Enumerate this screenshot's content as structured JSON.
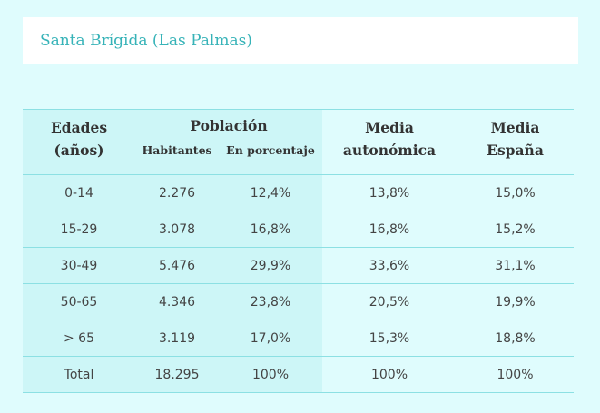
{
  "title": "Santa Brígida (Las Palmas)",
  "headers": {
    "edades_line1": "Edades",
    "edades_line2": "(años)",
    "poblacion": "Población",
    "habitantes": "Habitantes",
    "porcentaje": "En porcentaje",
    "media_auto_line1": "Media",
    "media_auto_line2": "autonómica",
    "media_esp_line1": "Media",
    "media_esp_line2": "España"
  },
  "rows": [
    {
      "edad": "0-14",
      "habitantes": "2.276",
      "porcentaje": "12,4%",
      "media_autonomica": "13,8%",
      "media_espana": "15,0%"
    },
    {
      "edad": "15-29",
      "habitantes": "3.078",
      "porcentaje": "16,8%",
      "media_autonomica": "16,8%",
      "media_espana": "15,2%"
    },
    {
      "edad": "30-49",
      "habitantes": "5.476",
      "porcentaje": "29,9%",
      "media_autonomica": "33,6%",
      "media_espana": "31,1%"
    },
    {
      "edad": "50-65",
      "habitantes": "4.346",
      "porcentaje": "23,8%",
      "media_autonomica": "20,5%",
      "media_espana": "19,9%"
    },
    {
      "edad": "> 65",
      "habitantes": "3.119",
      "porcentaje": "17,0%",
      "media_autonomica": "15,3%",
      "media_espana": "18,8%"
    },
    {
      "edad": "Total",
      "habitantes": "18.295",
      "porcentaje": "100%",
      "media_autonomica": "100%",
      "media_espana": "100%"
    }
  ],
  "colors": {
    "background": "#dffcfd",
    "shaded_column": "#cdf6f7",
    "title_text": "#37b3b8",
    "rule": "#8ce0e3"
  }
}
